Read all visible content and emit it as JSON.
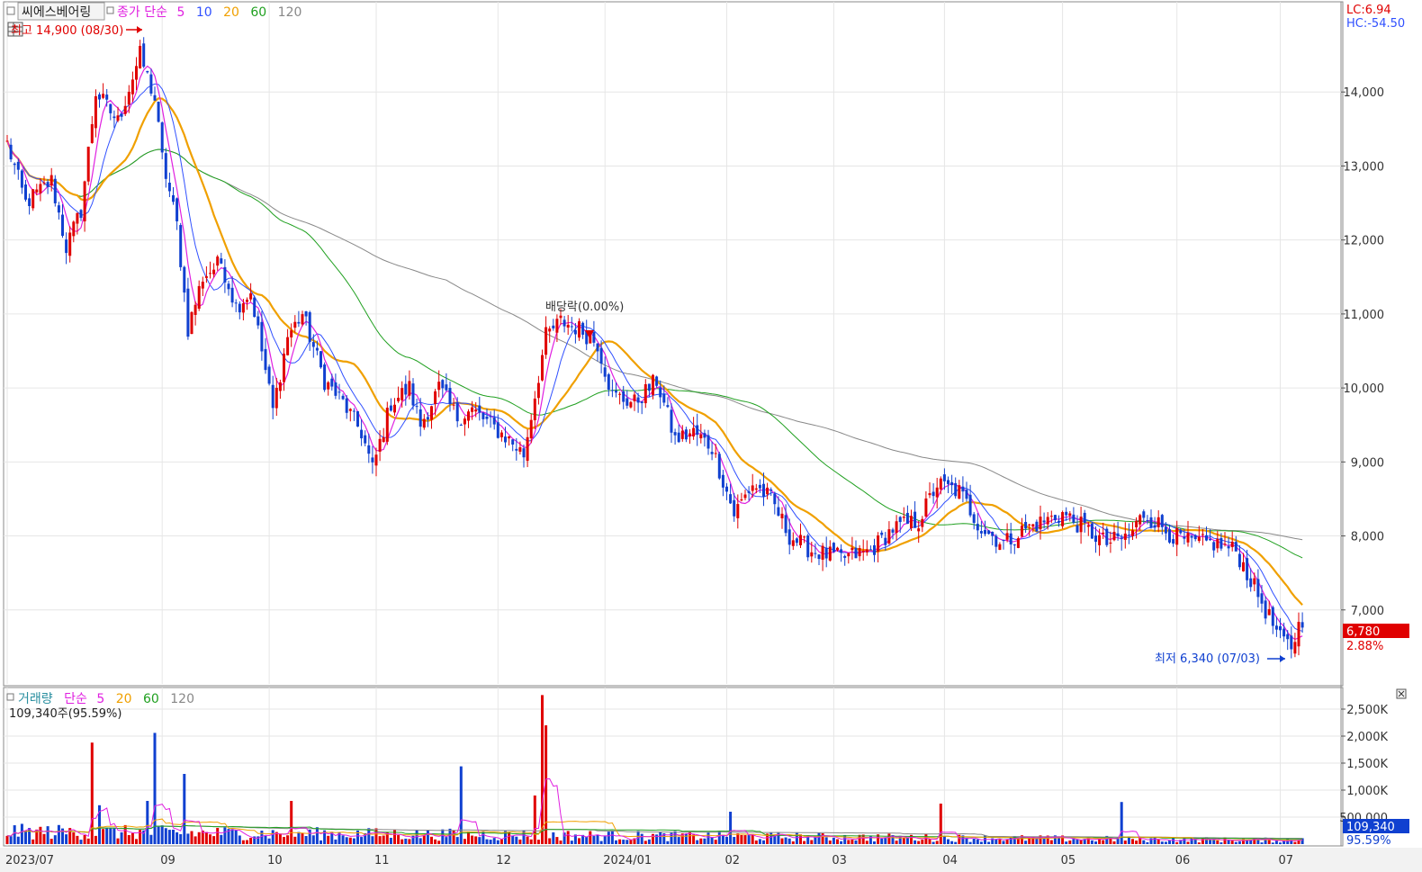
{
  "chart_data": [
    {
      "type": "candlestick",
      "title": "씨에스베어링",
      "legend": {
        "ma_label": "종가 단순",
        "periods": [
          "5",
          "10",
          "20",
          "60",
          "120"
        ]
      },
      "colors": {
        "ma5": "#e020e0",
        "ma10": "#3050ff",
        "ma20": "#f0a000",
        "ma60": "#20a020",
        "ma120": "#888888",
        "up": "#e00000",
        "down": "#1040d0",
        "highlight": "#e00000"
      },
      "ylim": [
        6000,
        15000
      ],
      "yticks": [
        "7,000",
        "8,000",
        "9,000",
        "10,000",
        "11,000",
        "12,000",
        "13,000",
        "14,000"
      ],
      "ytick_values": [
        7000,
        8000,
        9000,
        10000,
        11000,
        12000,
        13000,
        14000
      ],
      "xticks": [
        {
          "label": "2023/07",
          "index": 0
        },
        {
          "label": "09",
          "index": 42
        },
        {
          "label": "10",
          "index": 71
        },
        {
          "label": "11",
          "index": 100
        },
        {
          "label": "12",
          "index": 133
        },
        {
          "label": "2024/01",
          "index": 162
        },
        {
          "label": "02",
          "index": 195
        },
        {
          "label": "03",
          "index": 224
        },
        {
          "label": "04",
          "index": 254
        },
        {
          "label": "05",
          "index": 286
        },
        {
          "label": "06",
          "index": 317
        },
        {
          "label": "07",
          "index": 345
        }
      ],
      "corner_labels": {
        "lc": "LC:6.94",
        "hc": "HC:-54.50"
      },
      "last_close": "6,780",
      "last_change": "2.88%",
      "annotations": {
        "high": "최고 14,900 (08/30)",
        "low": "최저 6,340 (07/03)",
        "dividend": "배당락(0.00%)"
      },
      "price_keyframes": [
        [
          0,
          13300
        ],
        [
          5,
          12500
        ],
        [
          12,
          12800
        ],
        [
          16,
          11900
        ],
        [
          20,
          12400
        ],
        [
          24,
          14000
        ],
        [
          30,
          13600
        ],
        [
          36,
          14500
        ],
        [
          38,
          14200
        ],
        [
          40,
          13900
        ],
        [
          42,
          13100
        ],
        [
          46,
          12200
        ],
        [
          49,
          10800
        ],
        [
          53,
          11500
        ],
        [
          58,
          11700
        ],
        [
          62,
          11100
        ],
        [
          66,
          11300
        ],
        [
          72,
          9700
        ],
        [
          76,
          10700
        ],
        [
          80,
          11000
        ],
        [
          86,
          10100
        ],
        [
          91,
          9800
        ],
        [
          96,
          9400
        ],
        [
          99,
          8900
        ],
        [
          104,
          9800
        ],
        [
          109,
          10000
        ],
        [
          112,
          9500
        ],
        [
          117,
          10000
        ],
        [
          122,
          9600
        ],
        [
          126,
          9700
        ],
        [
          131,
          9500
        ],
        [
          136,
          9300
        ],
        [
          140,
          9100
        ],
        [
          146,
          10700
        ],
        [
          150,
          10900
        ],
        [
          155,
          10800
        ],
        [
          160,
          10600
        ],
        [
          164,
          9900
        ],
        [
          170,
          9800
        ],
        [
          176,
          10100
        ],
        [
          181,
          9300
        ],
        [
          186,
          9400
        ],
        [
          191,
          9200
        ],
        [
          197,
          8300
        ],
        [
          202,
          8700
        ],
        [
          207,
          8500
        ],
        [
          212,
          8000
        ],
        [
          218,
          7800
        ],
        [
          226,
          7700
        ],
        [
          234,
          7800
        ],
        [
          240,
          8100
        ],
        [
          247,
          8200
        ],
        [
          252,
          8700
        ],
        [
          258,
          8600
        ],
        [
          264,
          8100
        ],
        [
          270,
          7900
        ],
        [
          276,
          8100
        ],
        [
          281,
          8200
        ],
        [
          286,
          8300
        ],
        [
          292,
          8100
        ],
        [
          298,
          7900
        ],
        [
          304,
          8000
        ],
        [
          308,
          8300
        ],
        [
          311,
          8200
        ],
        [
          316,
          8000
        ],
        [
          321,
          7900
        ],
        [
          327,
          7900
        ],
        [
          333,
          7800
        ],
        [
          339,
          7200
        ],
        [
          345,
          6600
        ],
        [
          348,
          6500
        ],
        [
          350,
          6780
        ]
      ],
      "volume": {
        "label": "거래량",
        "ma_label": "단순",
        "periods": [
          "5",
          "20",
          "60",
          "120"
        ],
        "current": "109,340주(95.59%)",
        "last_value": "109,340",
        "last_pct": "95.59%",
        "ylim": [
          0,
          2800000
        ],
        "yticks": [
          "500,000",
          "1,000K",
          "1,500K",
          "2,000K",
          "2,500K"
        ],
        "ytick_values": [
          500000,
          1000000,
          1500000,
          2000000,
          2500000
        ],
        "spikes": [
          {
            "i": 23,
            "v": 1880000
          },
          {
            "i": 40,
            "v": 2060000
          },
          {
            "i": 48,
            "v": 1300000
          },
          {
            "i": 77,
            "v": 800000
          },
          {
            "i": 123,
            "v": 1440000
          },
          {
            "i": 145,
            "v": 2760000
          },
          {
            "i": 146,
            "v": 2200000
          },
          {
            "i": 143,
            "v": 900000
          },
          {
            "i": 196,
            "v": 600000
          },
          {
            "i": 253,
            "v": 750000
          },
          {
            "i": 302,
            "v": 780000
          },
          {
            "i": 25,
            "v": 720000
          },
          {
            "i": 38,
            "v": 800000
          }
        ]
      }
    }
  ]
}
